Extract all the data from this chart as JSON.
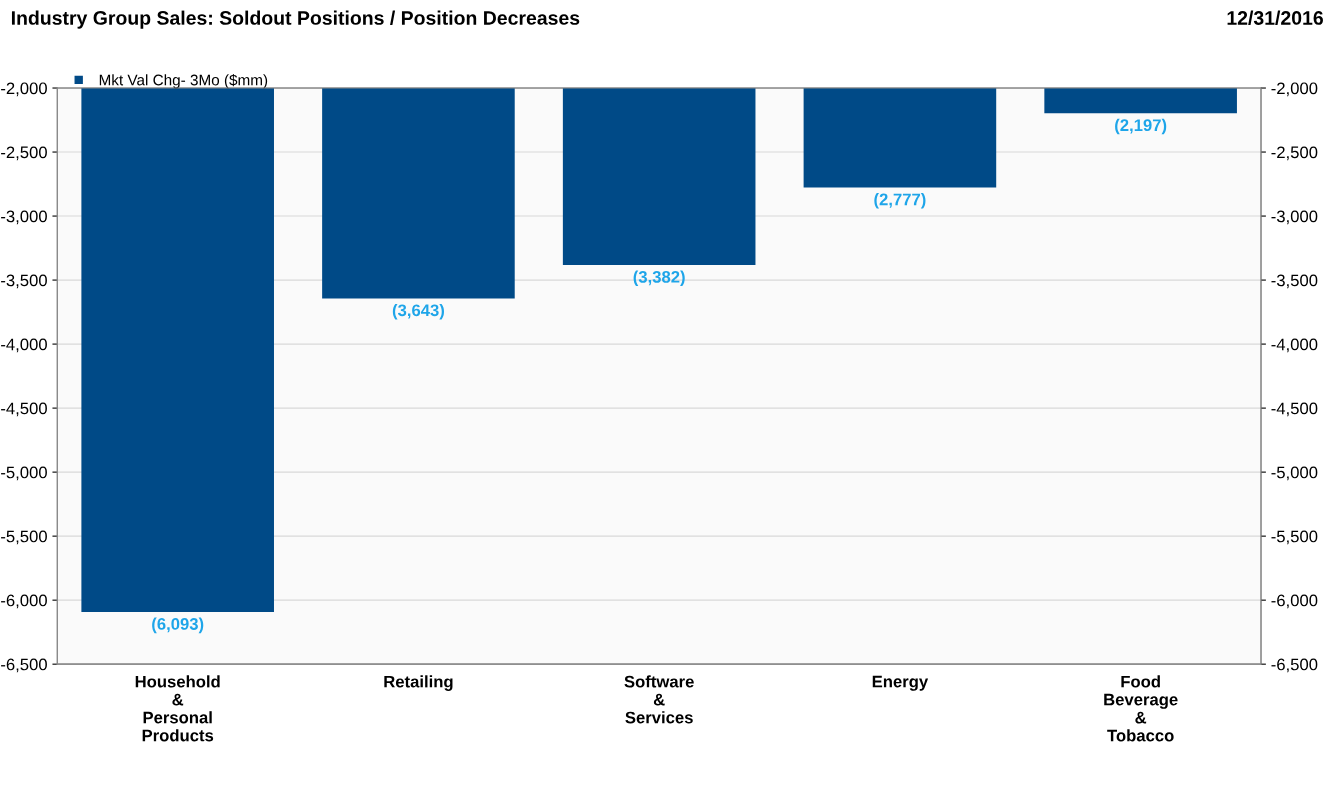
{
  "chart_data": {
    "type": "bar",
    "title": "Industry Group Sales: Soldout Positions / Position Decreases",
    "annotations": [
      "12/31/2016"
    ],
    "categories": [
      "Household\n&\nPersonal\nProducts",
      "Retailing",
      "Software\n&\nServices",
      "Energy",
      "Food\nBeverage\n&\nTobacco"
    ],
    "series": [
      {
        "name": "Mkt Val Chg- 3Mo ($mm)",
        "color": "#004a87",
        "values": [
          -6093,
          -3643,
          -3382,
          -2777,
          -2197
        ],
        "value_labels": [
          "(6,093)",
          "(3,643)",
          "(3,382)",
          "(2,777)",
          "(2,197)"
        ]
      }
    ],
    "ylim": [
      -6500,
      -2000
    ],
    "yticks": [
      {
        "value": -6500,
        "label": "-6,500"
      },
      {
        "value": -6000,
        "label": "-6,000"
      },
      {
        "value": -5500,
        "label": "-5,500"
      },
      {
        "value": -5000,
        "label": "-5,000"
      },
      {
        "value": -4500,
        "label": "-4,500"
      },
      {
        "value": -4000,
        "label": "-4,000"
      },
      {
        "value": -3500,
        "label": "-3,500"
      },
      {
        "value": -3000,
        "label": "-3,000"
      },
      {
        "value": -2500,
        "label": "-2,500"
      },
      {
        "value": -2000,
        "label": "-2,000"
      }
    ],
    "y2lim": [
      -6500,
      -2000
    ],
    "y2ticks": [
      {
        "value": -6500,
        "label": "-6,500"
      },
      {
        "value": -6000,
        "label": "-6,000"
      },
      {
        "value": -5500,
        "label": "-5,500"
      },
      {
        "value": -5000,
        "label": "-5,000"
      },
      {
        "value": -4500,
        "label": "-4,500"
      },
      {
        "value": -4000,
        "label": "-4,000"
      },
      {
        "value": -3500,
        "label": "-3,500"
      },
      {
        "value": -3000,
        "label": "-3,000"
      },
      {
        "value": -2500,
        "label": "-2,500"
      },
      {
        "value": -2000,
        "label": "-2,000"
      }
    ],
    "grid": true,
    "legend": "top left"
  }
}
